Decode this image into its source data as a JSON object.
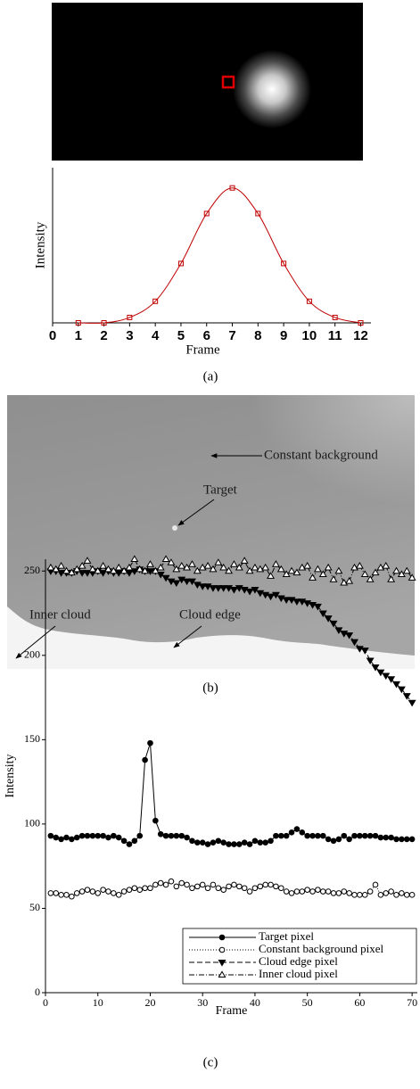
{
  "chart_data": [
    {
      "type": "line",
      "x_label": "Frame",
      "y_label": "Intensity",
      "x": [
        1,
        2,
        3,
        4,
        5,
        6,
        7,
        8,
        9,
        10,
        11,
        12
      ],
      "xlim": [
        0,
        12.4
      ],
      "xticks": [
        0,
        1,
        2,
        3,
        4,
        5,
        6,
        7,
        8,
        9,
        10,
        11,
        12
      ],
      "ylim": [
        0,
        1.15
      ],
      "smooth": true,
      "series": [
        {
          "color": "#c00000",
          "marker": "square-open",
          "dash": "solid",
          "values": [
            0,
            0,
            0.04,
            0.16,
            0.44,
            0.81,
            1.0,
            0.81,
            0.44,
            0.16,
            0.04,
            0
          ]
        }
      ]
    },
    {
      "type": "line",
      "x_label": "Frame",
      "y_label": "Intensity",
      "x": [
        1,
        2,
        3,
        4,
        5,
        6,
        7,
        8,
        9,
        10,
        11,
        12,
        13,
        14,
        15,
        16,
        17,
        18,
        19,
        20,
        21,
        22,
        23,
        24,
        25,
        26,
        27,
        28,
        29,
        30,
        31,
        32,
        33,
        34,
        35,
        36,
        37,
        38,
        39,
        40,
        41,
        42,
        43,
        44,
        45,
        46,
        47,
        48,
        49,
        50,
        51,
        52,
        53,
        54,
        55,
        56,
        57,
        58,
        59,
        60,
        61,
        62,
        63,
        64,
        65,
        66,
        67,
        68,
        69,
        70
      ],
      "xlim": [
        0,
        71
      ],
      "xticks": [
        0,
        10,
        20,
        30,
        40,
        50,
        60,
        70
      ],
      "ylim": [
        0,
        257
      ],
      "yticks": [
        0,
        50,
        100,
        150,
        200,
        250
      ],
      "legend": "lower right",
      "series": [
        {
          "name": "Target pixel",
          "color": "#000000",
          "marker": "circle-filled",
          "dash": "solid",
          "values": [
            93,
            92,
            91,
            92,
            91,
            92,
            93,
            93,
            93,
            93,
            93,
            92,
            93,
            92,
            90,
            88,
            90,
            93,
            138,
            148,
            102,
            94,
            93,
            93,
            93,
            93,
            92,
            90,
            89,
            89,
            88,
            89,
            90,
            89,
            88,
            88,
            88,
            89,
            88,
            90,
            89,
            89,
            90,
            93,
            93,
            93,
            95,
            97,
            95,
            93,
            93,
            93,
            93,
            91,
            90,
            91,
            93,
            91,
            93,
            93,
            93,
            93,
            93,
            92,
            92,
            92,
            91,
            91,
            91,
            91
          ]
        },
        {
          "name": "Constant background pixel",
          "color": "#000000",
          "marker": "circle-open",
          "dash": "dotted",
          "values": [
            59,
            59,
            58,
            58,
            57,
            59,
            60,
            61,
            60,
            59,
            61,
            60,
            59,
            58,
            60,
            61,
            62,
            61,
            62,
            62,
            64,
            65,
            64,
            66,
            63,
            65,
            64,
            62,
            63,
            64,
            62,
            64,
            62,
            61,
            63,
            64,
            63,
            62,
            60,
            62,
            63,
            64,
            64,
            63,
            62,
            60,
            59,
            60,
            60,
            61,
            60,
            61,
            60,
            60,
            59,
            59,
            60,
            59,
            58,
            58,
            58,
            60,
            64,
            58,
            59,
            60,
            58,
            59,
            58,
            58
          ]
        },
        {
          "name": "Cloud edge pixel",
          "color": "#000000",
          "marker": "triangle-down-filled",
          "dash": "dashed",
          "values": [
            250,
            250,
            249,
            249,
            249,
            250,
            249,
            249,
            249,
            250,
            249,
            250,
            249,
            249,
            250,
            249,
            250,
            251,
            250,
            250,
            250,
            248,
            246,
            244,
            243,
            245,
            244,
            244,
            242,
            241,
            241,
            240,
            240,
            240,
            240,
            239,
            240,
            239,
            238,
            239,
            237,
            236,
            235,
            236,
            234,
            233,
            233,
            232,
            232,
            231,
            230,
            229,
            225,
            222,
            219,
            215,
            213,
            212,
            208,
            204,
            203,
            197,
            193,
            190,
            188,
            186,
            183,
            180,
            176,
            172
          ]
        },
        {
          "name": "Inner cloud pixel",
          "color": "#000000",
          "marker": "triangle-up-open",
          "dash": "dashdot",
          "values": [
            252,
            251,
            253,
            250,
            249,
            251,
            253,
            256,
            251,
            250,
            253,
            251,
            250,
            252,
            250,
            252,
            257,
            251,
            250,
            254,
            250,
            252,
            257,
            255,
            251,
            253,
            252,
            254,
            250,
            252,
            253,
            251,
            255,
            252,
            250,
            254,
            252,
            256,
            250,
            252,
            251,
            252,
            247,
            254,
            251,
            248,
            250,
            249,
            252,
            253,
            246,
            251,
            248,
            252,
            245,
            250,
            243,
            244,
            252,
            253,
            248,
            245,
            249,
            252,
            253,
            245,
            250,
            248,
            250,
            246
          ]
        }
      ]
    }
  ],
  "panel_b": {
    "annotations": [
      "Constant background",
      "Target",
      "Inner cloud",
      "Cloud edge"
    ]
  },
  "captions": [
    "(a)",
    "(b)",
    "(c)"
  ]
}
